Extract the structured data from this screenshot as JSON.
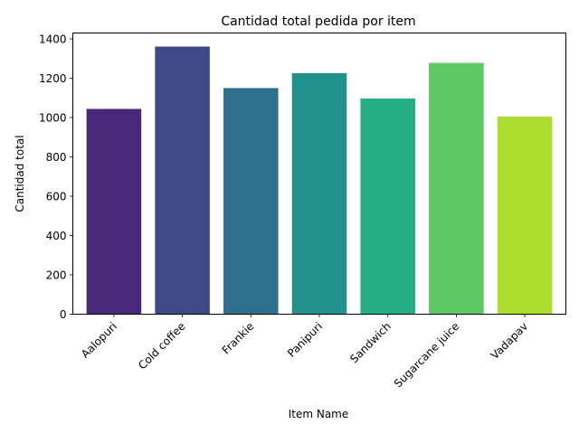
{
  "chart_data": {
    "type": "bar",
    "title": "Cantidad total pedida por item",
    "xlabel": "Item Name",
    "ylabel": "Cantidad total",
    "categories": [
      "Aalopuri",
      "Cold coffee",
      "Frankie",
      "Panipuri",
      "Sandwich",
      "Sugarcane juice",
      "Vadapav"
    ],
    "values": [
      1044,
      1361,
      1150,
      1226,
      1097,
      1278,
      1005
    ],
    "ylim": [
      0,
      1430
    ],
    "yticks": [
      0,
      200,
      400,
      600,
      800,
      1000,
      1200,
      1400
    ],
    "colors": [
      "#482878",
      "#3e4989",
      "#2e6f8e",
      "#21918c",
      "#26ad81",
      "#5ec962",
      "#addc30"
    ],
    "grid": false
  }
}
